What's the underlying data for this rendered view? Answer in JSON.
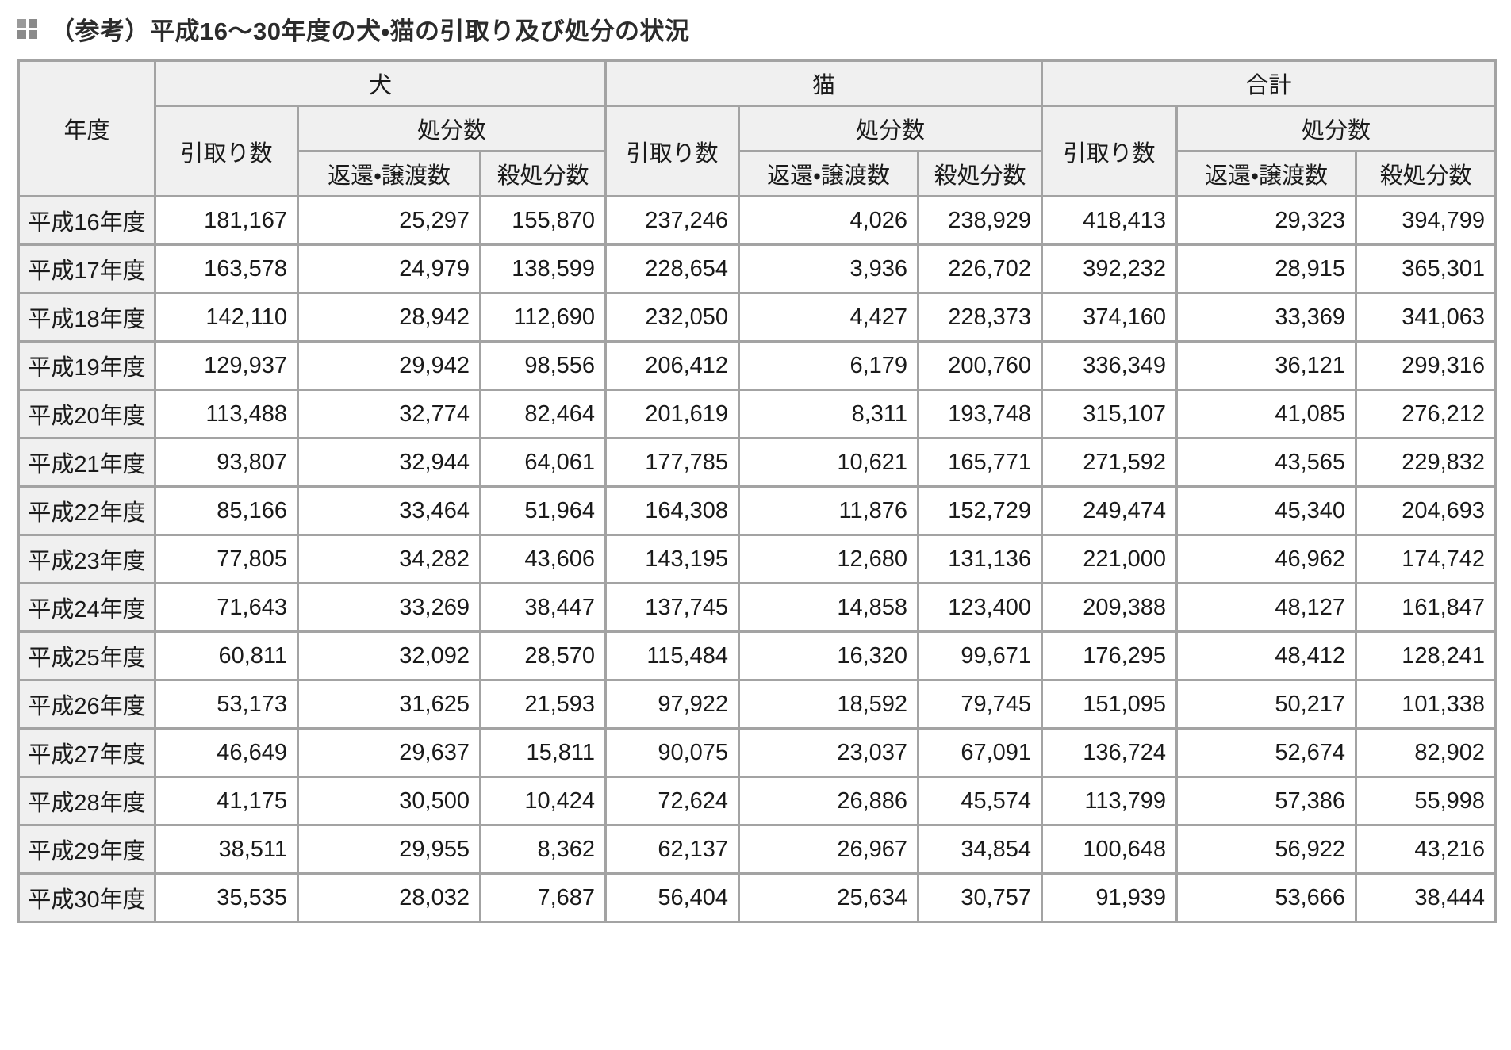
{
  "title": "（参考）平成16～30年度の犬・猫の引取り及び処分の状況",
  "colors": {
    "border": "#a3a3a3",
    "header_bg": "#f0f0f0",
    "title_text": "#2b2b2b",
    "bullet_icon_gray": "#8a8a8a"
  },
  "table": {
    "year_header": "年度",
    "groups": [
      {
        "label": "犬"
      },
      {
        "label": "猫"
      },
      {
        "label": "合計"
      }
    ],
    "intake_label": "引取り数",
    "disposal_label": "処分数",
    "returned_label": "返還・譲渡数",
    "killed_label": "殺処分数",
    "rows": [
      {
        "year": "平成16年度",
        "dog": [
          "181,167",
          "25,297",
          "155,870"
        ],
        "cat": [
          "237,246",
          "4,026",
          "238,929"
        ],
        "total": [
          "418,413",
          "29,323",
          "394,799"
        ]
      },
      {
        "year": "平成17年度",
        "dog": [
          "163,578",
          "24,979",
          "138,599"
        ],
        "cat": [
          "228,654",
          "3,936",
          "226,702"
        ],
        "total": [
          "392,232",
          "28,915",
          "365,301"
        ]
      },
      {
        "year": "平成18年度",
        "dog": [
          "142,110",
          "28,942",
          "112,690"
        ],
        "cat": [
          "232,050",
          "4,427",
          "228,373"
        ],
        "total": [
          "374,160",
          "33,369",
          "341,063"
        ]
      },
      {
        "year": "平成19年度",
        "dog": [
          "129,937",
          "29,942",
          "98,556"
        ],
        "cat": [
          "206,412",
          "6,179",
          "200,760"
        ],
        "total": [
          "336,349",
          "36,121",
          "299,316"
        ]
      },
      {
        "year": "平成20年度",
        "dog": [
          "113,488",
          "32,774",
          "82,464"
        ],
        "cat": [
          "201,619",
          "8,311",
          "193,748"
        ],
        "total": [
          "315,107",
          "41,085",
          "276,212"
        ]
      },
      {
        "year": "平成21年度",
        "dog": [
          "93,807",
          "32,944",
          "64,061"
        ],
        "cat": [
          "177,785",
          "10,621",
          "165,771"
        ],
        "total": [
          "271,592",
          "43,565",
          "229,832"
        ]
      },
      {
        "year": "平成22年度",
        "dog": [
          "85,166",
          "33,464",
          "51,964"
        ],
        "cat": [
          "164,308",
          "11,876",
          "152,729"
        ],
        "total": [
          "249,474",
          "45,340",
          "204,693"
        ]
      },
      {
        "year": "平成23年度",
        "dog": [
          "77,805",
          "34,282",
          "43,606"
        ],
        "cat": [
          "143,195",
          "12,680",
          "131,136"
        ],
        "total": [
          "221,000",
          "46,962",
          "174,742"
        ]
      },
      {
        "year": "平成24年度",
        "dog": [
          "71,643",
          "33,269",
          "38,447"
        ],
        "cat": [
          "137,745",
          "14,858",
          "123,400"
        ],
        "total": [
          "209,388",
          "48,127",
          "161,847"
        ]
      },
      {
        "year": "平成25年度",
        "dog": [
          "60,811",
          "32,092",
          "28,570"
        ],
        "cat": [
          "115,484",
          "16,320",
          "99,671"
        ],
        "total": [
          "176,295",
          "48,412",
          "128,241"
        ]
      },
      {
        "year": "平成26年度",
        "dog": [
          "53,173",
          "31,625",
          "21,593"
        ],
        "cat": [
          "97,922",
          "18,592",
          "79,745"
        ],
        "total": [
          "151,095",
          "50,217",
          "101,338"
        ]
      },
      {
        "year": "平成27年度",
        "dog": [
          "46,649",
          "29,637",
          "15,811"
        ],
        "cat": [
          "90,075",
          "23,037",
          "67,091"
        ],
        "total": [
          "136,724",
          "52,674",
          "82,902"
        ]
      },
      {
        "year": "平成28年度",
        "dog": [
          "41,175",
          "30,500",
          "10,424"
        ],
        "cat": [
          "72,624",
          "26,886",
          "45,574"
        ],
        "total": [
          "113,799",
          "57,386",
          "55,998"
        ]
      },
      {
        "year": "平成29年度",
        "dog": [
          "38,511",
          "29,955",
          "8,362"
        ],
        "cat": [
          "62,137",
          "26,967",
          "34,854"
        ],
        "total": [
          "100,648",
          "56,922",
          "43,216"
        ]
      },
      {
        "year": "平成30年度",
        "dog": [
          "35,535",
          "28,032",
          "7,687"
        ],
        "cat": [
          "56,404",
          "25,634",
          "30,757"
        ],
        "total": [
          "91,939",
          "53,666",
          "38,444"
        ]
      }
    ]
  }
}
